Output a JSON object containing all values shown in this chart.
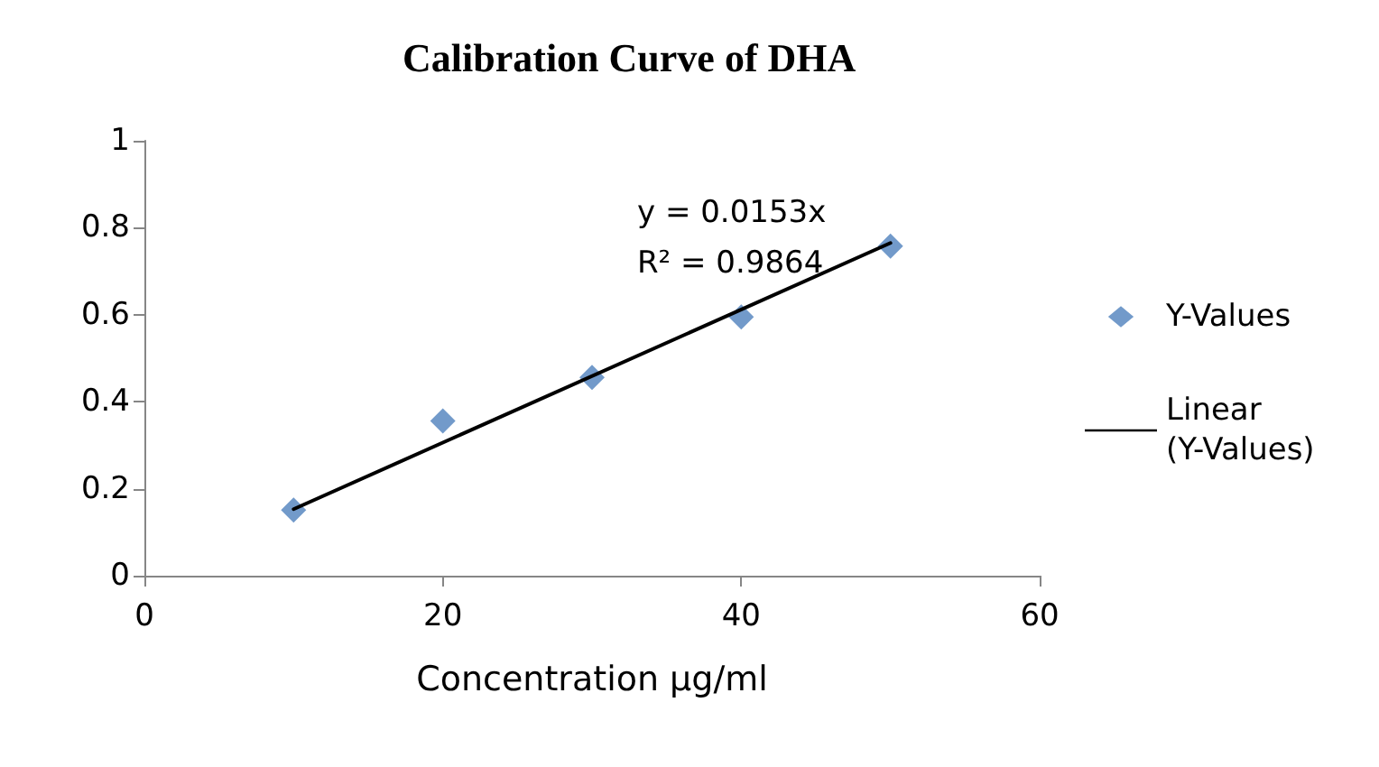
{
  "chart_data": {
    "type": "scatter",
    "title": "Calibration Curve of DHA",
    "xlabel": "Concentration µg/ml",
    "x": [
      10,
      20,
      30,
      40,
      50
    ],
    "series": [
      {
        "name": "Y-Values",
        "color": "#4f81bd",
        "marker": "diamond",
        "values": [
          0.151,
          0.356,
          0.456,
          0.595,
          0.758
        ]
      },
      {
        "name": "Linear (Y-Values)",
        "type": "line",
        "color": "#000000",
        "marker": "none",
        "x": [
          10,
          50
        ],
        "values": [
          0.153,
          0.765
        ]
      }
    ],
    "annotations": [
      "y = 0.0153x\nR² = 0.9864"
    ],
    "xlim": [
      0,
      60
    ],
    "xticks": [
      0,
      20,
      40,
      60
    ],
    "ylim": [
      0,
      1
    ],
    "yticks": [
      0,
      0.2,
      0.4,
      0.6,
      0.8,
      1
    ],
    "grid": false,
    "legend": "right"
  }
}
